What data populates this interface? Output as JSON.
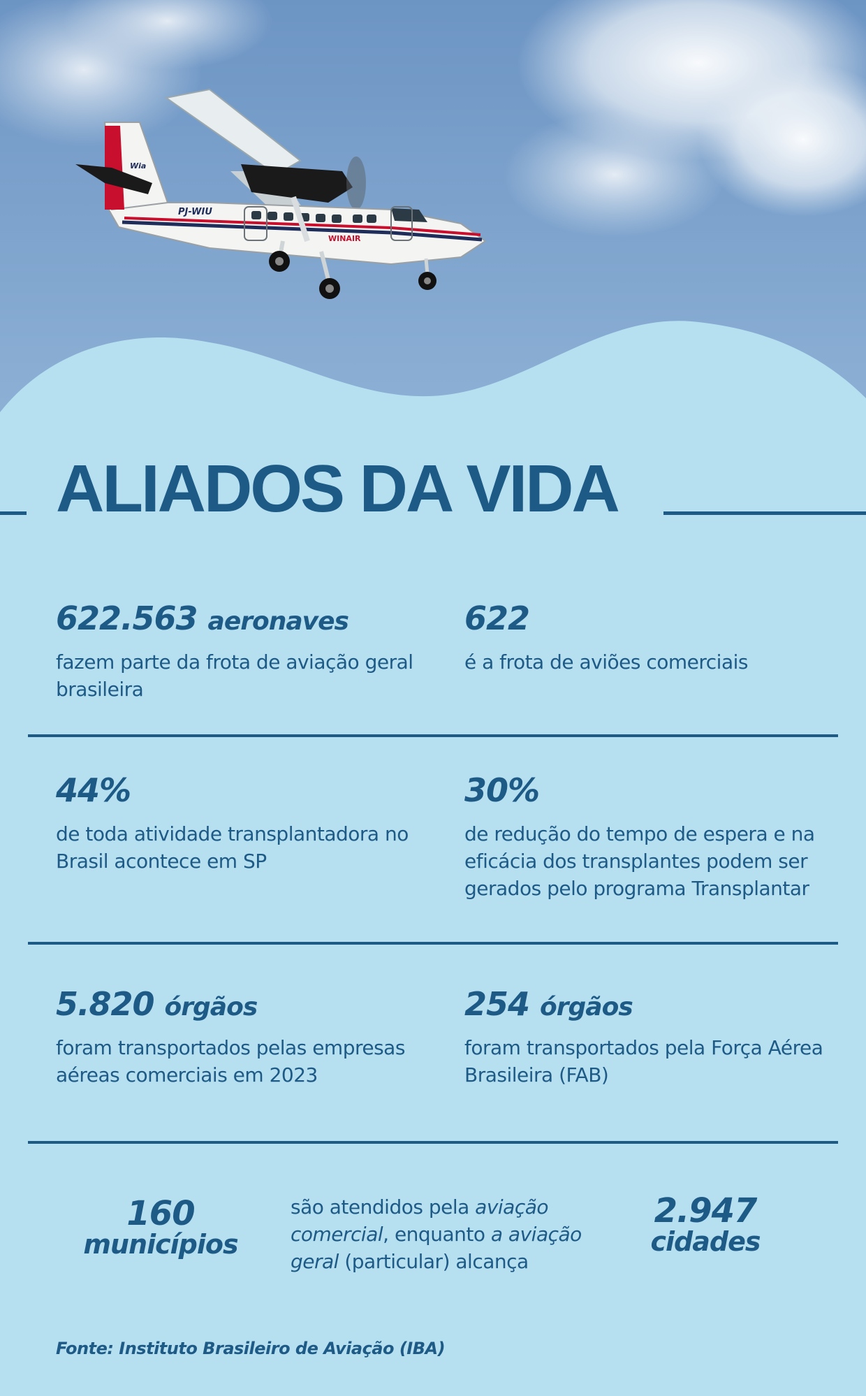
{
  "title": "ALIADOS DA VIDA",
  "colors": {
    "accent": "#1e5a86",
    "background": "#b6dff0",
    "sky": "#7fa6cd"
  },
  "photo": {
    "aircraft_registration": "PJ-WIU",
    "aircraft_livery": "WINAIR",
    "tail_logo": "Wia"
  },
  "stats": [
    {
      "value": "622.563",
      "unit": "aeronaves",
      "description": "fazem parte da frota de aviação geral brasileira"
    },
    {
      "value": "622",
      "unit": "",
      "description": "é a frota de aviões comerciais"
    },
    {
      "value": "44%",
      "unit": "",
      "description": "de toda atividade transplantadora no Brasil acontece em SP"
    },
    {
      "value": "30%",
      "unit": "",
      "description": "de redução do tempo de espera e na eficácia dos transplantes podem ser gerados pelo programa Transplantar"
    },
    {
      "value": "5.820",
      "unit": "órgãos",
      "description": "foram transportados pelas empresas aéreas comerciais em 2023"
    },
    {
      "value": "254",
      "unit": "órgãos",
      "description": "foram transportados pela Força Aérea Brasileira (FAB)"
    }
  ],
  "bottom": {
    "left_number": "160",
    "left_word": "municípios",
    "middle": {
      "part1": "são atendidos pela ",
      "part2_italic": "aviação comercial",
      "part3": ", enquanto ",
      "part4_italic": "a aviação geral",
      "part5": " (particular) alcança"
    },
    "right_number": "2.947",
    "right_word": "cidades"
  },
  "source": "Fonte: Instituto Brasileiro de Aviação (IBA)"
}
